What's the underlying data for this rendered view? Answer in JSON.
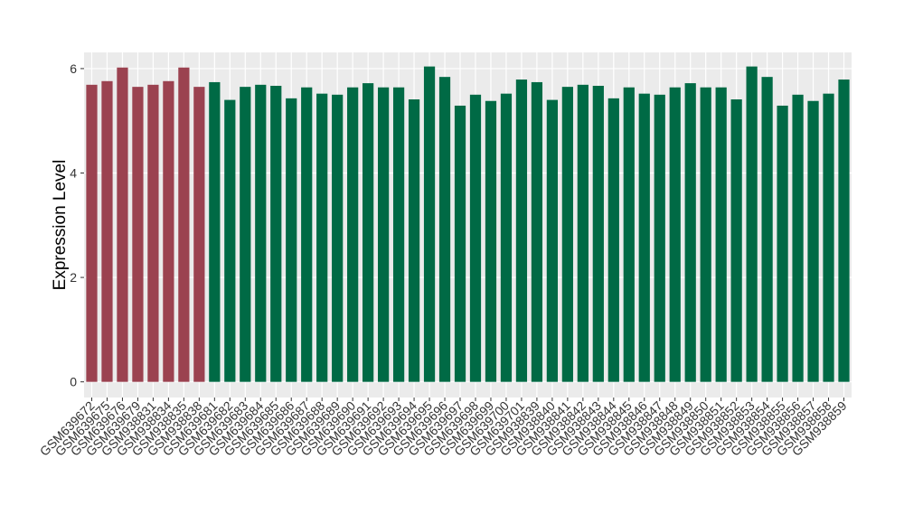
{
  "chart_data": {
    "type": "bar",
    "y_label": "Expression Level",
    "categories": [
      "GSM639672",
      "GSM639675",
      "GSM639676",
      "GSM639679",
      "GSM938831",
      "GSM938834",
      "GSM938835",
      "GSM938838",
      "GSM639681",
      "GSM639682",
      "GSM639683",
      "GSM639684",
      "GSM639685",
      "GSM639686",
      "GSM639687",
      "GSM639688",
      "GSM639689",
      "GSM639690",
      "GSM639691",
      "GSM639692",
      "GSM639693",
      "GSM639694",
      "GSM639695",
      "GSM639696",
      "GSM639697",
      "GSM639698",
      "GSM639699",
      "GSM639700",
      "GSM639701",
      "GSM938839",
      "GSM938840",
      "GSM938841",
      "GSM938842",
      "GSM938843",
      "GSM938844",
      "GSM938845",
      "GSM938846",
      "GSM938847",
      "GSM938848",
      "GSM938849",
      "GSM938850",
      "GSM938851",
      "GSM938852",
      "GSM938853",
      "GSM938854",
      "GSM938855",
      "GSM938856",
      "GSM938857",
      "GSM938858",
      "GSM938859"
    ],
    "values": [
      5.69,
      5.76,
      6.02,
      5.65,
      5.69,
      5.76,
      6.02,
      5.65,
      5.74,
      5.4,
      5.65,
      5.69,
      5.67,
      5.43,
      5.64,
      5.52,
      5.5,
      5.64,
      5.72,
      5.64,
      5.64,
      5.41,
      6.04,
      5.84,
      5.29,
      5.5,
      5.38,
      5.52,
      5.79,
      5.74,
      5.4,
      5.65,
      5.69,
      5.67,
      5.43,
      5.64,
      5.52,
      5.5,
      5.64,
      5.72,
      5.64,
      5.64,
      5.41,
      6.04,
      5.84,
      5.29,
      5.5,
      5.38,
      5.52,
      5.79
    ],
    "colors": [
      "#9b4250",
      "#9b4250",
      "#9b4250",
      "#9b4250",
      "#9b4250",
      "#9b4250",
      "#9b4250",
      "#9b4250",
      "#006a45",
      "#006a45",
      "#006a45",
      "#006a45",
      "#006a45",
      "#006a45",
      "#006a45",
      "#006a45",
      "#006a45",
      "#006a45",
      "#006a45",
      "#006a45",
      "#006a45",
      "#006a45",
      "#006a45",
      "#006a45",
      "#006a45",
      "#006a45",
      "#006a45",
      "#006a45",
      "#006a45",
      "#006a45",
      "#006a45",
      "#006a45",
      "#006a45",
      "#006a45",
      "#006a45",
      "#006a45",
      "#006a45",
      "#006a45",
      "#006a45",
      "#006a45",
      "#006a45",
      "#006a45",
      "#006a45",
      "#006a45",
      "#006a45",
      "#006a45",
      "#006a45",
      "#006a45",
      "#006a45",
      "#006a45"
    ],
    "ylim": [
      -0.3,
      6.31
    ],
    "yticks": [
      0,
      2,
      4,
      6
    ],
    "grid": true
  }
}
